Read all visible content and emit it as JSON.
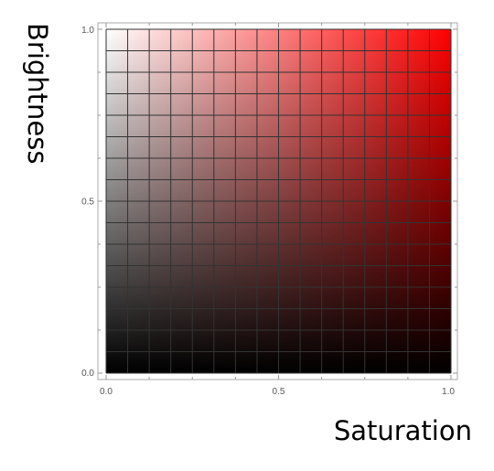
{
  "chart_data": {
    "type": "heatmap",
    "title": "",
    "xlabel": "Saturation",
    "ylabel": "Brightness",
    "xlim": [
      0,
      1
    ],
    "ylim": [
      0,
      1
    ],
    "x_ticks": [
      "0.0",
      "0.5",
      "1.0"
    ],
    "y_ticks": [
      "0.0",
      "0.5",
      "1.0"
    ],
    "hue": "#ff0000",
    "grid": true,
    "grid_cells": 16,
    "grid_color": "#333333",
    "frame_color": "#aaaaaa"
  }
}
